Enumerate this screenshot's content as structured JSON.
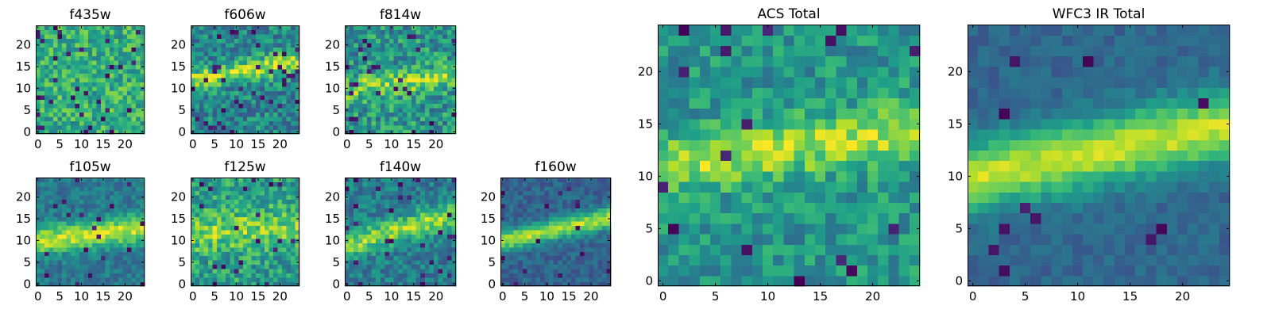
{
  "colors": {
    "low": "#440154",
    "high": "#fde725",
    "colormap": "viridis",
    "frame": "#000000"
  },
  "chart_data": [
    {
      "type": "heatmap",
      "title": "f435w",
      "x_ticks": [
        "0",
        "5",
        "10",
        "15",
        "20"
      ],
      "y_ticks": [
        "0",
        "5",
        "10",
        "15",
        "20"
      ],
      "xlim": [
        -0.5,
        24.5
      ],
      "ylim": [
        -0.5,
        24.5
      ],
      "grid": false,
      "values": {
        "mode": "noise",
        "seed": 11,
        "mean": 0.62,
        "spread": 0.2,
        "dark_fraction": 0.05
      }
    },
    {
      "type": "heatmap",
      "title": "f606w",
      "x_ticks": [
        "0",
        "5",
        "10",
        "15",
        "20"
      ],
      "y_ticks": [
        "0",
        "5",
        "10",
        "15",
        "20"
      ],
      "xlim": [
        -0.5,
        24.5
      ],
      "ylim": [
        -0.5,
        24.5
      ],
      "grid": false,
      "values": {
        "mode": "band",
        "seed": 23,
        "base": 0.46,
        "amp": 0.42,
        "center_y0": 12,
        "slope": 0.18,
        "width": 2.4,
        "noise": 0.2,
        "dark_fraction": 0.05
      }
    },
    {
      "type": "heatmap",
      "title": "f814w",
      "x_ticks": [
        "0",
        "5",
        "10",
        "15",
        "20"
      ],
      "y_ticks": [
        "0",
        "5",
        "10",
        "15",
        "20"
      ],
      "xlim": [
        -0.5,
        24.5
      ],
      "ylim": [
        -0.5,
        24.5
      ],
      "grid": false,
      "values": {
        "mode": "band",
        "seed": 37,
        "base": 0.52,
        "amp": 0.3,
        "center_y0": 10,
        "slope": 0.12,
        "width": 2.6,
        "noise": 0.22,
        "dark_fraction": 0.05
      }
    },
    {
      "type": "heatmap",
      "title": "f105w",
      "x_ticks": [
        "0",
        "5",
        "10",
        "15",
        "20"
      ],
      "y_ticks": [
        "0",
        "5",
        "10",
        "15",
        "20"
      ],
      "xlim": [
        -0.5,
        24.5
      ],
      "ylim": [
        -0.5,
        24.5
      ],
      "grid": false,
      "values": {
        "mode": "band",
        "seed": 41,
        "base": 0.4,
        "amp": 0.5,
        "center_y0": 10,
        "slope": 0.12,
        "width": 3.2,
        "noise": 0.12,
        "dark_fraction": 0.03
      }
    },
    {
      "type": "heatmap",
      "title": "f125w",
      "x_ticks": [
        "0",
        "5",
        "10",
        "15",
        "20"
      ],
      "y_ticks": [
        "0",
        "5",
        "10",
        "15",
        "20"
      ],
      "xlim": [
        -0.5,
        24.5
      ],
      "ylim": [
        -0.5,
        24.5
      ],
      "grid": false,
      "values": {
        "mode": "band",
        "seed": 53,
        "base": 0.55,
        "amp": 0.25,
        "center_y0": 12,
        "slope": 0.04,
        "width": 4.5,
        "noise": 0.2,
        "dark_fraction": 0.04
      }
    },
    {
      "type": "heatmap",
      "title": "f140w",
      "x_ticks": [
        "0",
        "5",
        "10",
        "15",
        "20"
      ],
      "y_ticks": [
        "0",
        "5",
        "10",
        "15",
        "20"
      ],
      "xlim": [
        -0.5,
        24.5
      ],
      "ylim": [
        -0.5,
        24.5
      ],
      "grid": false,
      "values": {
        "mode": "band",
        "seed": 67,
        "base": 0.42,
        "amp": 0.42,
        "center_y0": 9,
        "slope": 0.3,
        "width": 3.0,
        "noise": 0.15,
        "dark_fraction": 0.04
      }
    },
    {
      "type": "heatmap",
      "title": "f160w",
      "x_ticks": [
        "0",
        "5",
        "10",
        "15",
        "20"
      ],
      "y_ticks": [
        "0",
        "5",
        "10",
        "15",
        "20"
      ],
      "xlim": [
        -0.5,
        24.5
      ],
      "ylim": [
        -0.5,
        24.5
      ],
      "grid": false,
      "values": {
        "mode": "band",
        "seed": 79,
        "base": 0.32,
        "amp": 0.55,
        "center_y0": 10,
        "slope": 0.22,
        "width": 2.4,
        "noise": 0.1,
        "dark_fraction": 0.03
      }
    },
    {
      "type": "heatmap",
      "title": "ACS Total",
      "x_ticks": [
        "0",
        "5",
        "10",
        "15",
        "20"
      ],
      "y_ticks": [
        "0",
        "5",
        "10",
        "15",
        "20"
      ],
      "xlim": [
        -0.5,
        24.5
      ],
      "ylim": [
        -0.5,
        24.5
      ],
      "grid": false,
      "values": {
        "mode": "band",
        "seed": 97,
        "base": 0.52,
        "amp": 0.36,
        "center_y0": 11,
        "slope": 0.14,
        "width": 2.6,
        "noise": 0.16,
        "dark_fraction": 0.035
      }
    },
    {
      "type": "heatmap",
      "title": "WFC3 IR Total",
      "x_ticks": [
        "0",
        "5",
        "10",
        "15",
        "20"
      ],
      "y_ticks": [
        "0",
        "5",
        "10",
        "15",
        "20"
      ],
      "xlim": [
        -0.5,
        24.5
      ],
      "ylim": [
        -0.5,
        24.5
      ],
      "grid": false,
      "values": {
        "mode": "band",
        "seed": 109,
        "base": 0.33,
        "amp": 0.58,
        "center_y0": 10,
        "slope": 0.2,
        "width": 3.3,
        "noise": 0.07,
        "dark_fraction": 0.025
      }
    }
  ]
}
